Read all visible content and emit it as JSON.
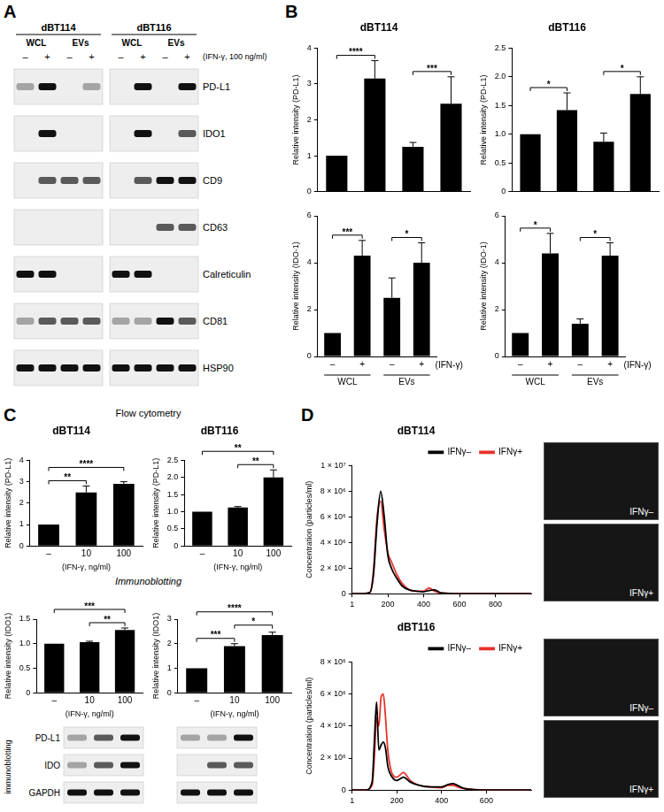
{
  "panel_labels": [
    "A",
    "B",
    "C",
    "D"
  ],
  "blot_A": {
    "cell_lines": [
      "dBT114",
      "dBT116"
    ],
    "fractions": [
      "WCL",
      "EVs"
    ],
    "signs": [
      "–",
      "+"
    ],
    "treatment": "(IFN-γ, 100 ng/ml)",
    "rows": [
      {
        "label": "PD-L1",
        "bands": [
          1,
          3,
          0,
          1,
          0,
          3,
          0,
          3
        ]
      },
      {
        "label": "IDO1",
        "bands": [
          0,
          3,
          0,
          0,
          0,
          3,
          0,
          2
        ]
      },
      {
        "label": "CD9",
        "bands": [
          0,
          2,
          2,
          2,
          0,
          2,
          3,
          3
        ]
      },
      {
        "label": "CD63",
        "bands": [
          0,
          0,
          0,
          0,
          0,
          0,
          2,
          2
        ]
      },
      {
        "label": "Calreticulin",
        "bands": [
          3,
          3,
          0,
          0,
          3,
          3,
          0,
          0
        ]
      },
      {
        "label": "CD81",
        "bands": [
          1,
          2,
          2,
          2,
          1,
          1,
          3,
          2
        ]
      },
      {
        "label": "HSP90",
        "bands": [
          3,
          3,
          3,
          3,
          3,
          3,
          3,
          3
        ]
      }
    ]
  },
  "section_headers_C": [
    "Flow cytometry",
    "Immunoblotting"
  ],
  "blot_C": {
    "label": "immunoblotting",
    "rows": [
      {
        "label": "PD-L1",
        "bands": [
          1,
          2,
          3,
          1,
          1,
          3
        ]
      },
      {
        "label": "IDO",
        "bands": [
          1,
          2,
          3,
          0,
          2,
          2
        ]
      },
      {
        "label": "GAPDH",
        "bands": [
          3,
          3,
          3,
          3,
          3,
          3
        ]
      }
    ]
  },
  "chart_data": [
    {
      "type": "bar",
      "title": "dBT114",
      "categories": [
        null,
        null,
        null,
        null
      ],
      "values": [
        1,
        3.15,
        1.25,
        2.45
      ],
      "errors": [
        0,
        0.5,
        0.12,
        0.75
      ],
      "significance": [
        {
          "from": 0,
          "to": 1,
          "label": "****"
        },
        {
          "from": 2,
          "to": 3,
          "label": "***"
        }
      ],
      "y_label": "Relative intensity (PD-L1)",
      "color": "#000000",
      "ylim": [
        0,
        4
      ],
      "yticks": [
        0,
        1,
        2,
        3,
        4
      ],
      "grid": false,
      "tick_labels": "y"
    },
    {
      "type": "bar",
      "title": "dBT116",
      "categories": [
        null,
        null,
        null,
        null
      ],
      "values": [
        1,
        1.42,
        0.87,
        1.7
      ],
      "errors": [
        0,
        0.3,
        0.15,
        0.3
      ],
      "significance": [
        {
          "from": 0,
          "to": 1,
          "label": "*"
        },
        {
          "from": 2,
          "to": 3,
          "label": "*"
        }
      ],
      "y_label": "Relative intensity (PD-L1)",
      "color": "#000000",
      "ylim": [
        0,
        2.5
      ],
      "yticks": [
        0,
        0.5,
        {
          "value": 1,
          "label": "1.0"
        },
        1.5,
        {
          "value": 2,
          "label": "2.0"
        },
        2.5
      ],
      "grid": false,
      "tick_labels": "y"
    },
    {
      "type": "bar",
      "categories": [
        "–",
        "+",
        "–",
        "+"
      ],
      "groups": [
        "WCL",
        "EVs"
      ],
      "x_label": "(IFN-γ)",
      "values": [
        1,
        4.3,
        2.5,
        4.0
      ],
      "errors": [
        0,
        0.65,
        0.85,
        0.85
      ],
      "significance": [
        {
          "from": 0,
          "to": 1,
          "label": "***"
        },
        {
          "from": 2,
          "to": 3,
          "label": "*"
        }
      ],
      "y_label": "Relative intensity (IDO-1)",
      "color": "#000000",
      "ylim": [
        0,
        6
      ],
      "yticks": [
        0,
        2,
        4,
        6
      ],
      "grid": false
    },
    {
      "type": "bar",
      "categories": [
        "–",
        "+",
        "–",
        "+"
      ],
      "groups": [
        "WCL",
        "EVs"
      ],
      "x_label": "(IFN-γ)",
      "values": [
        1,
        4.4,
        1.4,
        4.3
      ],
      "errors": [
        0,
        0.85,
        0.2,
        0.55
      ],
      "significance": [
        {
          "from": 0,
          "to": 1,
          "label": "*"
        },
        {
          "from": 2,
          "to": 3,
          "label": "*"
        }
      ],
      "y_label": "Relative intensity (IDO-1)",
      "color": "#000000",
      "ylim": [
        0,
        6
      ],
      "yticks": [
        0,
        2,
        4,
        6
      ],
      "grid": false
    },
    {
      "type": "bar",
      "title": "dBT114",
      "categories": [
        "–",
        "10",
        "100"
      ],
      "x_label": "(IFN-γ, ng/ml)",
      "values": [
        1,
        2.5,
        2.9
      ],
      "errors": [
        0,
        0.3,
        0.1
      ],
      "significance": [
        {
          "from": 0,
          "to": 1,
          "label": "**"
        },
        {
          "from": 0,
          "to": 2,
          "label": "****"
        }
      ],
      "y_label": "Relative intensity (PD-L1)",
      "color": "#000000",
      "ylim": [
        0,
        4
      ],
      "yticks": [
        0,
        1,
        2,
        3,
        4
      ],
      "grid": false
    },
    {
      "type": "bar",
      "title": "dBT116",
      "categories": [
        "–",
        "10",
        "100"
      ],
      "x_label": "(IFN-γ, ng/ml)",
      "values": [
        1,
        1.12,
        2.0
      ],
      "errors": [
        0,
        0.03,
        0.22
      ],
      "significance": [
        {
          "from": 1,
          "to": 2,
          "label": "**"
        },
        {
          "from": 0,
          "to": 2,
          "label": "**"
        }
      ],
      "y_label": "Relative intensity (PD-L1)",
      "color": "#000000",
      "ylim": [
        0,
        2.5
      ],
      "yticks": [
        0,
        0.5,
        {
          "value": 1,
          "label": "1.0"
        },
        1.5,
        {
          "value": 2,
          "label": "2.0"
        },
        2.5
      ],
      "grid": false
    },
    {
      "type": "bar",
      "categories": [
        "–",
        "10",
        "100"
      ],
      "x_label": "(IFN-γ, ng/ml)",
      "values": [
        1,
        1.03,
        1.28
      ],
      "errors": [
        0,
        0.02,
        0.04
      ],
      "significance": [
        {
          "from": 1,
          "to": 2,
          "label": "**"
        },
        {
          "from": 0,
          "to": 2,
          "label": "***"
        }
      ],
      "y_label": "Relative intensity (IDO1)",
      "color": "#000000",
      "ylim": [
        0,
        1.5
      ],
      "yticks": [
        0,
        0.5,
        {
          "value": 1,
          "label": "1.0"
        },
        1.5
      ],
      "grid": false
    },
    {
      "type": "bar",
      "categories": [
        "–",
        "10",
        "100"
      ],
      "x_label": "(IFN-γ, ng/ml)",
      "values": [
        1,
        1.9,
        2.35
      ],
      "errors": [
        0,
        0.1,
        0.12
      ],
      "significance": [
        {
          "from": 0,
          "to": 1,
          "label": "***"
        },
        {
          "from": 1,
          "to": 2,
          "label": "*"
        },
        {
          "from": 0,
          "to": 2,
          "label": "****"
        }
      ],
      "y_label": "Relative intensity (IDO1)",
      "color": "#000000",
      "ylim": [
        0,
        3
      ],
      "yticks": [
        0,
        1,
        2,
        3
      ],
      "grid": false
    },
    {
      "type": "line",
      "title": "dBT114",
      "x": [
        1,
        50,
        100,
        120,
        140,
        160,
        180,
        200,
        220,
        250,
        280,
        320,
        360,
        400,
        430,
        460,
        500,
        600,
        800,
        1000
      ],
      "series": [
        {
          "name": "IFNγ–",
          "color": "#000000",
          "values": [
            0,
            0,
            100000,
            1500000,
            5500000,
            8000000,
            6000000,
            3000000,
            2000000,
            1200000,
            600000,
            300000,
            200000,
            150000,
            250000,
            300000,
            50000,
            0,
            0,
            0
          ]
        },
        {
          "name": "IFNγ+",
          "color": "#e8312b",
          "values": [
            0,
            0,
            100000,
            1800000,
            6000000,
            7200000,
            5000000,
            3200000,
            2500000,
            1500000,
            800000,
            300000,
            200000,
            200000,
            450000,
            200000,
            50000,
            0,
            0,
            0
          ]
        }
      ],
      "y_label": "Concentration (particles/ml)",
      "xlim": [
        1,
        1000
      ],
      "xticks": [
        1,
        200,
        400,
        600,
        800
      ],
      "ylim": [
        0,
        10000000
      ],
      "yticks": [
        0,
        {
          "value": 2000000,
          "label": "2 × 10⁶"
        },
        {
          "value": 4000000,
          "label": "4 × 10⁶"
        },
        {
          "value": 6000000,
          "label": "6 × 10⁶"
        },
        {
          "value": 8000000,
          "label": "8 × 10⁶"
        },
        {
          "value": 10000000,
          "label": "1 × 10⁷"
        }
      ],
      "legend": "top-right",
      "grid": false,
      "images": [
        "IFNγ–",
        "IFNγ+"
      ]
    },
    {
      "type": "line",
      "title": "dBT116",
      "x": [
        1,
        60,
        90,
        100,
        110,
        120,
        130,
        140,
        150,
        160,
        180,
        200,
        230,
        260,
        300,
        350,
        400,
        430,
        450,
        470,
        500,
        600,
        800
      ],
      "series": [
        {
          "name": "IFNγ–",
          "color": "#000000",
          "values": [
            0,
            0,
            500000,
            3000000,
            5500000,
            2500000,
            2800000,
            3000000,
            2600000,
            1500000,
            800000,
            600000,
            800000,
            500000,
            300000,
            200000,
            200000,
            350000,
            400000,
            300000,
            100000,
            0,
            0
          ]
        },
        {
          "name": "IFNγ+",
          "color": "#e8312b",
          "values": [
            0,
            0,
            300000,
            2000000,
            4500000,
            4000000,
            5800000,
            6000000,
            4500000,
            2500000,
            1000000,
            800000,
            1100000,
            600000,
            300000,
            200000,
            150000,
            300000,
            300000,
            200000,
            100000,
            0,
            0
          ]
        }
      ],
      "y_label": "Concentration (particles/ml)",
      "xlim": [
        1,
        800
      ],
      "xticks": [
        1,
        200,
        400,
        600
      ],
      "ylim": [
        0,
        8000000
      ],
      "yticks": [
        0,
        {
          "value": 2000000,
          "label": "2 × 10⁶"
        },
        {
          "value": 4000000,
          "label": "4 × 10⁶"
        },
        {
          "value": 6000000,
          "label": "6 × 10⁶"
        },
        {
          "value": 8000000,
          "label": "8 × 10⁶"
        }
      ],
      "legend": "top-right",
      "grid": false,
      "images": [
        "IFNγ–",
        "IFNγ+"
      ]
    }
  ]
}
